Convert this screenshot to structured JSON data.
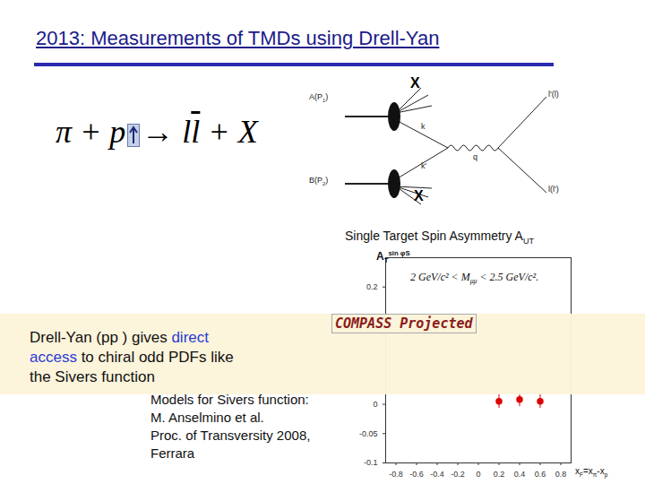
{
  "slide": {
    "title": "2013: Measurements of TMDs using Drell-Yan",
    "reaction": [
      {
        "text": "π + p",
        "polarized": true
      },
      {
        "text": "→ l"
      },
      {
        "text": "l",
        "overline": true
      },
      {
        "text": " + X"
      }
    ],
    "diagram": {
      "beam_a": [
        {
          "text": "A(P"
        },
        {
          "text": "1",
          "sub": true
        },
        {
          "text": ")"
        }
      ],
      "beam_b": [
        {
          "text": "B(P"
        },
        {
          "text": "2",
          "sub": true
        },
        {
          "text": ")"
        }
      ],
      "remnant_a": "X",
      "remnant_b": "X",
      "parton_a": "k",
      "parton_b": "k'",
      "boson": "q",
      "lepton_1": [
        {
          "text": "l'(l)"
        }
      ],
      "lepton_2": [
        {
          "text": "l(l')"
        }
      ]
    },
    "asymmetry_title": [
      {
        "text": "Single Target Spin Asymmetry A"
      },
      {
        "text": "UT",
        "sub": true
      }
    ],
    "note": [
      {
        "text": "Drell-Yan (pp ) gives "
      },
      {
        "text": "direct access",
        "highlight": true
      },
      {
        "text": " to chiral odd PDFs like the Sivers function"
      }
    ],
    "stamp": "COMPASS Projected",
    "models": [
      "Models for Sivers function:",
      "M. Anselmino et al.",
      "Proc. of Transversity 2008,",
      "Ferrara"
    ]
  },
  "chart_data": {
    "type": "scatter",
    "ylabel": [
      {
        "text": "A"
      },
      {
        "text": "T",
        "sub": true
      },
      {
        "text": "sin φS",
        "sup": true
      }
    ],
    "xlabel": [
      {
        "text": "x"
      },
      {
        "text": "F",
        "sub": true
      },
      {
        "text": "=x"
      },
      {
        "text": "π",
        "sub": true
      },
      {
        "text": "-x"
      },
      {
        "text": "p",
        "sub": true
      }
    ],
    "annotations": [
      [
        {
          "text": "2 GeV/c² < M"
        },
        {
          "text": "μμ",
          "sub": true
        },
        {
          "text": " < 2.5 GeV/c²."
        }
      ]
    ],
    "x": [
      0.2,
      0.4,
      0.6
    ],
    "values": [
      0.005,
      0.008,
      0.005
    ],
    "errors": [
      0.012,
      0.012,
      0.012
    ],
    "color": "#dd0000",
    "marker": "circle",
    "xlim": [
      -0.9,
      0.9
    ],
    "xticks": [
      -0.8,
      -0.6,
      -0.4,
      -0.2,
      0,
      0.2,
      0.4,
      0.6,
      0.8
    ],
    "ylim": [
      -0.1,
      0.25
    ],
    "yticks": [
      -0.1,
      -0.05,
      0,
      0.2
    ]
  }
}
